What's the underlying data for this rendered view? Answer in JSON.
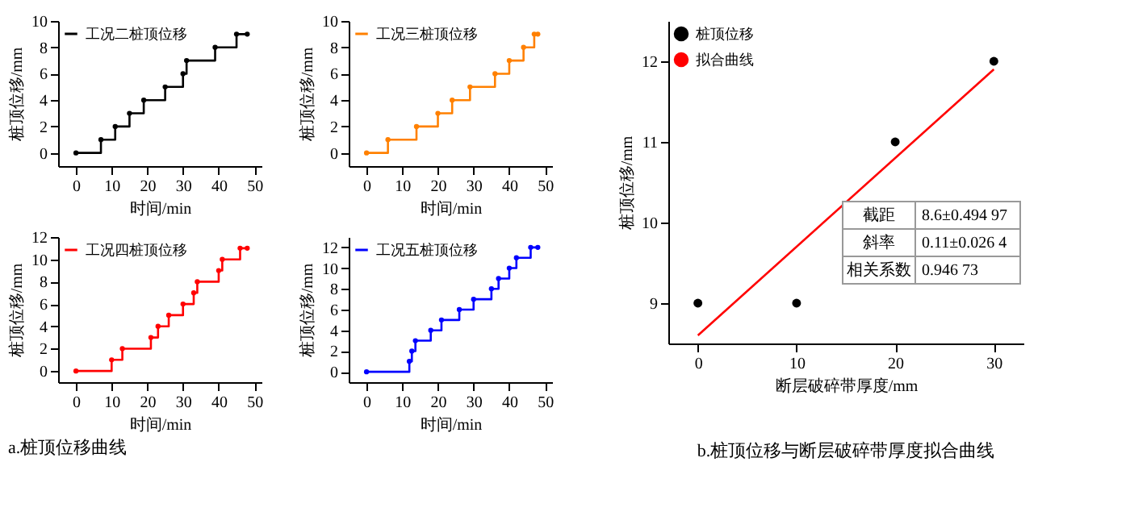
{
  "chart_data": [
    {
      "type": "step",
      "xlabel": "时间/min",
      "ylabel": "桩顶位移/mm",
      "xlim": [
        -5,
        52
      ],
      "ylim": [
        -1,
        10
      ],
      "xticks": [
        0,
        10,
        20,
        30,
        40,
        50
      ],
      "yticks": [
        0,
        2,
        4,
        6,
        8,
        10
      ],
      "legend": "top left",
      "marker": "circle",
      "line_style": "solid",
      "series": [
        {
          "name": "工况二桩顶位移",
          "color": "#000000",
          "x": [
            0,
            7,
            11,
            15,
            19,
            25,
            30,
            31,
            39,
            45,
            48
          ],
          "values": [
            0,
            1,
            2,
            3,
            4,
            5,
            6,
            7,
            8,
            9,
            9
          ]
        }
      ]
    },
    {
      "type": "step",
      "xlabel": "时间/min",
      "ylabel": "桩顶位移/mm",
      "xlim": [
        -5,
        52
      ],
      "ylim": [
        -1,
        10
      ],
      "xticks": [
        0,
        10,
        20,
        30,
        40,
        50
      ],
      "yticks": [
        0,
        2,
        4,
        6,
        8,
        10
      ],
      "legend": "top left",
      "marker": "circle",
      "line_style": "solid",
      "series": [
        {
          "name": "工况三桩顶位移",
          "color": "#ff8000",
          "x": [
            0,
            6,
            14,
            20,
            24,
            29,
            36,
            40,
            44,
            47,
            48
          ],
          "values": [
            0,
            1,
            2,
            3,
            4,
            5,
            6,
            7,
            8,
            9,
            9
          ]
        }
      ]
    },
    {
      "type": "step",
      "xlabel": "时间/min",
      "ylabel": "桩顶位移/mm",
      "xlim": [
        -5,
        52
      ],
      "ylim": [
        -1,
        12
      ],
      "xticks": [
        0,
        10,
        20,
        30,
        40,
        50
      ],
      "yticks": [
        0,
        2,
        4,
        6,
        8,
        10,
        12
      ],
      "legend": "top left",
      "marker": "circle",
      "line_style": "solid",
      "annotations": [
        "a.桩顶位移曲线"
      ],
      "series": [
        {
          "name": "工况四桩顶位移",
          "color": "#ff0000",
          "x": [
            0,
            10,
            13,
            21,
            23,
            26,
            30,
            33,
            34,
            40,
            41,
            46,
            48
          ],
          "values": [
            0,
            1,
            2,
            3,
            4,
            5,
            6,
            7,
            8,
            9,
            10,
            11,
            11
          ]
        }
      ]
    },
    {
      "type": "step",
      "xlabel": "时间/min",
      "ylabel": "桩顶位移/mm",
      "xlim": [
        -5,
        52
      ],
      "ylim": [
        -1,
        13
      ],
      "xticks": [
        0,
        10,
        20,
        30,
        40,
        50
      ],
      "yticks": [
        0,
        2,
        4,
        6,
        8,
        10,
        12
      ],
      "legend": "top left",
      "marker": "circle",
      "line_style": "solid",
      "series": [
        {
          "name": "工况五桩顶位移",
          "color": "#0000ff",
          "x": [
            0,
            12,
            12.7,
            13.7,
            18,
            21,
            26,
            30,
            35,
            37,
            40,
            42,
            46,
            48
          ],
          "values": [
            0,
            1,
            2,
            3,
            4,
            5,
            6,
            7,
            8,
            9,
            10,
            11,
            12,
            12
          ]
        }
      ]
    },
    {
      "type": "scatter",
      "title": "b.桩顶位移与断层破碎带厚度拟合曲线",
      "xlabel": "断层破碎带厚度/mm",
      "ylabel": "桩顶位移/mm",
      "xlim": [
        -3,
        33
      ],
      "ylim": [
        8.5,
        12.5
      ],
      "xticks": [
        0,
        10,
        20,
        30
      ],
      "yticks": [
        9,
        10,
        11,
        12
      ],
      "legend": "top left",
      "annotations": [
        "截距",
        "8.6±0.494 97",
        "斜率",
        "0.11±0.026 4",
        "相关系数",
        "0.946 73"
      ],
      "series": [
        {
          "name": "桩顶位移",
          "color": "#000000",
          "marker": "circle",
          "x": [
            0,
            10,
            20,
            30
          ],
          "values": [
            9,
            9,
            11,
            12
          ]
        },
        {
          "name": "拟合曲线",
          "type": "line",
          "color": "#ff0000",
          "line_style": "solid",
          "x": [
            0,
            30
          ],
          "values": [
            8.6,
            11.9
          ]
        }
      ]
    }
  ]
}
